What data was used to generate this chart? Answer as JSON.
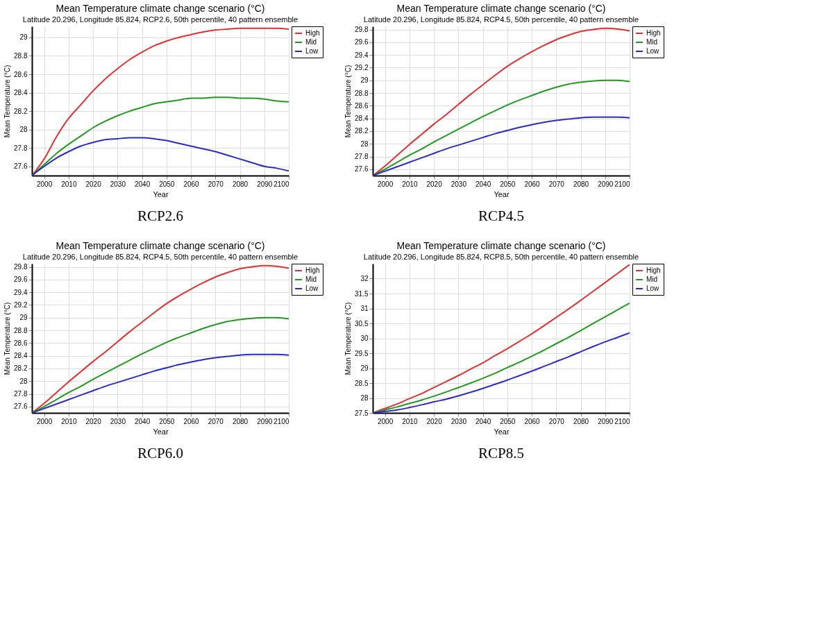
{
  "chart_data": [
    {
      "type": "line",
      "title": "Mean Temperature climate change scenario (°C)",
      "subtitle": "Latitude 20.296, Longitude 85.824, RCP2.6, 50th percentile, 40 pattern ensemble",
      "xlabel": "Year",
      "ylabel": "Mean Temperature (°C)",
      "annotations": [
        "RCP2.6"
      ],
      "x": [
        1995,
        2000,
        2005,
        2010,
        2015,
        2020,
        2025,
        2030,
        2035,
        2040,
        2045,
        2050,
        2055,
        2060,
        2065,
        2070,
        2075,
        2080,
        2085,
        2090,
        2095,
        2100
      ],
      "series": [
        {
          "name": "High",
          "color": "#e03030",
          "values": [
            27.5,
            27.68,
            27.92,
            28.12,
            28.27,
            28.42,
            28.55,
            28.66,
            28.76,
            28.84,
            28.91,
            28.96,
            29.0,
            29.03,
            29.06,
            29.08,
            29.09,
            29.1,
            29.1,
            29.1,
            29.1,
            29.09
          ]
        },
        {
          "name": "Mid",
          "color": "#1f9a1f",
          "values": [
            27.5,
            27.62,
            27.74,
            27.84,
            27.93,
            28.02,
            28.09,
            28.15,
            28.2,
            28.24,
            28.28,
            28.3,
            28.32,
            28.34,
            28.34,
            28.35,
            28.35,
            28.34,
            28.34,
            28.33,
            28.31,
            28.3
          ]
        },
        {
          "name": "Low",
          "color": "#2a2ac8",
          "values": [
            27.5,
            27.6,
            27.69,
            27.76,
            27.82,
            27.86,
            27.89,
            27.9,
            27.91,
            27.91,
            27.9,
            27.88,
            27.85,
            27.82,
            27.79,
            27.76,
            27.72,
            27.68,
            27.64,
            27.6,
            27.58,
            27.55
          ]
        }
      ],
      "xlim": [
        1995,
        2100
      ],
      "xticks": [
        2000,
        2010,
        2020,
        2030,
        2040,
        2050,
        2060,
        2070,
        2080,
        2090,
        2100
      ],
      "ylim": [
        27.5,
        29.12
      ],
      "yticks": [
        27.6,
        27.8,
        28,
        28.2,
        28.4,
        28.6,
        28.8,
        29
      ],
      "grid": true,
      "legend": "top right"
    },
    {
      "type": "line",
      "title": "Mean Temperature climate change scenario (°C)",
      "subtitle": "Latitude 20.296, Longitude 85.824, RCP4.5, 50th percentile, 40 pattern ensemble",
      "xlabel": "Year",
      "ylabel": "Mean Temperature (°C)",
      "annotations": [
        "RCP4.5"
      ],
      "x": [
        1995,
        2000,
        2005,
        2010,
        2015,
        2020,
        2025,
        2030,
        2035,
        2040,
        2045,
        2050,
        2055,
        2060,
        2065,
        2070,
        2075,
        2080,
        2085,
        2090,
        2095,
        2100
      ],
      "series": [
        {
          "name": "High",
          "color": "#e03030",
          "values": [
            27.5,
            27.65,
            27.82,
            27.99,
            28.15,
            28.31,
            28.46,
            28.62,
            28.78,
            28.93,
            29.08,
            29.22,
            29.34,
            29.45,
            29.55,
            29.64,
            29.71,
            29.77,
            29.8,
            29.82,
            29.81,
            29.78
          ]
        },
        {
          "name": "Mid",
          "color": "#1f9a1f",
          "values": [
            27.5,
            27.6,
            27.71,
            27.82,
            27.92,
            28.03,
            28.13,
            28.23,
            28.33,
            28.43,
            28.52,
            28.61,
            28.69,
            28.76,
            28.83,
            28.89,
            28.94,
            28.97,
            28.99,
            29.0,
            29.0,
            28.98
          ]
        },
        {
          "name": "Low",
          "color": "#2a2ac8",
          "values": [
            27.5,
            27.57,
            27.64,
            27.71,
            27.78,
            27.85,
            27.92,
            27.98,
            28.04,
            28.1,
            28.16,
            28.21,
            28.26,
            28.3,
            28.34,
            28.37,
            28.39,
            28.41,
            28.42,
            28.42,
            28.42,
            28.41
          ]
        }
      ],
      "xlim": [
        1995,
        2100
      ],
      "xticks": [
        2000,
        2010,
        2020,
        2030,
        2040,
        2050,
        2060,
        2070,
        2080,
        2090,
        2100
      ],
      "ylim": [
        27.5,
        29.85
      ],
      "yticks": [
        27.6,
        27.8,
        28,
        28.2,
        28.4,
        28.6,
        28.8,
        29,
        29.2,
        29.4,
        29.6,
        29.8
      ],
      "grid": true,
      "legend": "top right"
    },
    {
      "type": "line",
      "title": "Mean Temperature climate change scenario (°C)",
      "subtitle": "Latitude 20.296, Longitude 85.824, RCP4.5, 50th percentile, 40 pattern ensemble",
      "xlabel": "Year",
      "ylabel": "Mean Temperature (°C)",
      "annotations": [
        "RCP6.0"
      ],
      "x": [
        1995,
        2000,
        2005,
        2010,
        2015,
        2020,
        2025,
        2030,
        2035,
        2040,
        2045,
        2050,
        2055,
        2060,
        2065,
        2070,
        2075,
        2080,
        2085,
        2090,
        2095,
        2100
      ],
      "series": [
        {
          "name": "High",
          "color": "#e03030",
          "values": [
            27.5,
            27.65,
            27.82,
            27.99,
            28.15,
            28.31,
            28.46,
            28.62,
            28.78,
            28.93,
            29.08,
            29.22,
            29.34,
            29.45,
            29.55,
            29.64,
            29.71,
            29.77,
            29.8,
            29.82,
            29.81,
            29.78
          ]
        },
        {
          "name": "Mid",
          "color": "#1f9a1f",
          "values": [
            27.5,
            27.6,
            27.71,
            27.82,
            27.92,
            28.03,
            28.13,
            28.23,
            28.33,
            28.43,
            28.52,
            28.61,
            28.69,
            28.76,
            28.83,
            28.89,
            28.94,
            28.97,
            28.99,
            29.0,
            29.0,
            28.98
          ]
        },
        {
          "name": "Low",
          "color": "#2a2ac8",
          "values": [
            27.5,
            27.57,
            27.64,
            27.71,
            27.78,
            27.85,
            27.92,
            27.98,
            28.04,
            28.1,
            28.16,
            28.21,
            28.26,
            28.3,
            28.34,
            28.37,
            28.39,
            28.41,
            28.42,
            28.42,
            28.42,
            28.41
          ]
        }
      ],
      "xlim": [
        1995,
        2100
      ],
      "xticks": [
        2000,
        2010,
        2020,
        2030,
        2040,
        2050,
        2060,
        2070,
        2080,
        2090,
        2100
      ],
      "ylim": [
        27.5,
        29.85
      ],
      "yticks": [
        27.6,
        27.8,
        28,
        28.2,
        28.4,
        28.6,
        28.8,
        29,
        29.2,
        29.4,
        29.6,
        29.8
      ],
      "grid": true,
      "legend": "top right"
    },
    {
      "type": "line",
      "title": "Mean Temperature climate change scenario (°C)",
      "subtitle": "Latitude 20.296, Longitude 85.824, RCP8.5, 50th percentile, 40 pattern ensemble",
      "xlabel": "Year",
      "ylabel": "Mean Temperature (°C)",
      "annotations": [
        "RCP8.5"
      ],
      "x": [
        1995,
        2000,
        2005,
        2010,
        2015,
        2020,
        2025,
        2030,
        2035,
        2040,
        2045,
        2050,
        2055,
        2060,
        2065,
        2070,
        2075,
        2080,
        2085,
        2090,
        2095,
        2100
      ],
      "series": [
        {
          "name": "High",
          "color": "#e03030",
          "values": [
            27.5,
            27.65,
            27.8,
            27.98,
            28.15,
            28.35,
            28.55,
            28.75,
            28.97,
            29.18,
            29.42,
            29.65,
            29.9,
            30.15,
            30.42,
            30.7,
            30.98,
            31.27,
            31.57,
            31.87,
            32.17,
            32.47
          ]
        },
        {
          "name": "Mid",
          "color": "#1f9a1f",
          "values": [
            27.5,
            27.6,
            27.7,
            27.82,
            27.93,
            28.06,
            28.2,
            28.35,
            28.5,
            28.66,
            28.83,
            29.02,
            29.2,
            29.4,
            29.6,
            29.82,
            30.03,
            30.26,
            30.49,
            30.72,
            30.95,
            31.18
          ]
        },
        {
          "name": "Low",
          "color": "#2a2ac8",
          "values": [
            27.5,
            27.55,
            27.6,
            27.68,
            27.77,
            27.87,
            27.96,
            28.07,
            28.19,
            28.32,
            28.46,
            28.6,
            28.75,
            28.9,
            29.06,
            29.22,
            29.38,
            29.55,
            29.72,
            29.88,
            30.03,
            30.18
          ]
        }
      ],
      "xlim": [
        1995,
        2100
      ],
      "xticks": [
        2000,
        2010,
        2020,
        2030,
        2040,
        2050,
        2060,
        2070,
        2080,
        2090,
        2100
      ],
      "ylim": [
        27.5,
        32.5
      ],
      "yticks": [
        27.5,
        28,
        28.5,
        29,
        29.5,
        30,
        30.5,
        31,
        31.5,
        32
      ],
      "grid": true,
      "legend": "top right"
    }
  ]
}
